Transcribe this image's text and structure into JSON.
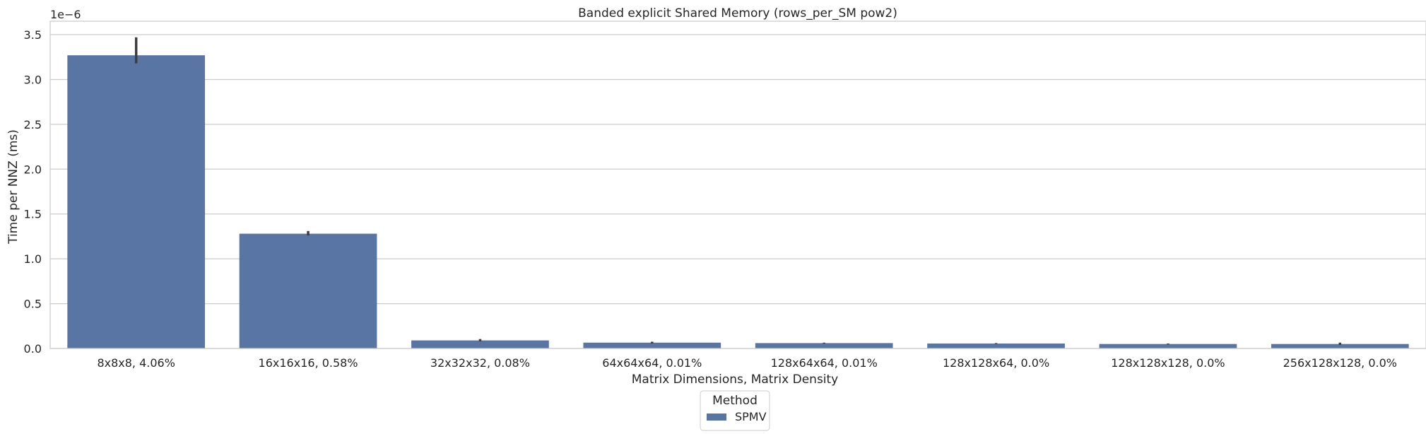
{
  "chart_data": {
    "type": "bar",
    "title": "Banded explicit Shared Memory (rows_per_SM pow2)",
    "xlabel": "Matrix Dimensions, Matrix Density",
    "ylabel": "Time per NNZ (ms)",
    "y_scale_label": "1e−6",
    "ylim": [
      0,
      3.65
    ],
    "yticks": [
      0.0,
      0.5,
      1.0,
      1.5,
      2.0,
      2.5,
      3.0,
      3.5
    ],
    "ytick_labels": [
      "0.0",
      "0.5",
      "1.0",
      "1.5",
      "2.0",
      "2.5",
      "3.0",
      "3.5"
    ],
    "grid": true,
    "categories": [
      "8x8x8, 4.06%",
      "16x16x16, 0.58%",
      "32x32x32, 0.08%",
      "64x64x64, 0.01%",
      "128x64x64, 0.01%",
      "128x128x64, 0.0%",
      "128x128x128, 0.0%",
      "256x128x128, 0.0%"
    ],
    "series": [
      {
        "name": "SPMV",
        "color": "#5975a4",
        "values": [
          3.27,
          1.28,
          0.09,
          0.065,
          0.06,
          0.055,
          0.05,
          0.05
        ],
        "error_low": [
          3.18,
          1.26,
          0.08,
          0.055,
          0.055,
          0.05,
          0.045,
          0.04
        ],
        "error_high": [
          3.47,
          1.31,
          0.105,
          0.075,
          0.065,
          0.06,
          0.055,
          0.065
        ]
      }
    ],
    "legend": {
      "title": "Method",
      "placement": "bottom-center"
    }
  }
}
